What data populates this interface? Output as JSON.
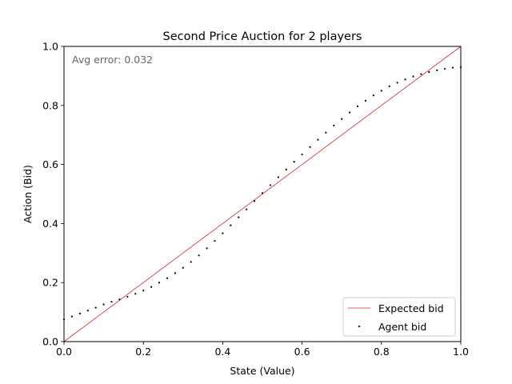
{
  "chart_data": {
    "type": "scatter",
    "title": "Second Price Auction for 2 players",
    "xlabel": "State (Value)",
    "ylabel": "Action (Bid)",
    "xlim": [
      0.0,
      1.0
    ],
    "ylim": [
      0.0,
      1.0
    ],
    "xticks": [
      "0.0",
      "0.2",
      "0.4",
      "0.6",
      "0.8",
      "1.0"
    ],
    "yticks": [
      "0.0",
      "0.2",
      "0.4",
      "0.6",
      "0.8",
      "1.0"
    ],
    "grid": false,
    "annotation": "Avg error: 0.032",
    "legend": {
      "position": "lower-right",
      "entries": [
        "Expected bid",
        "Agent bid"
      ]
    },
    "series": [
      {
        "name": "Expected bid",
        "kind": "line",
        "color": "#d62728",
        "x": [
          0.0,
          1.0
        ],
        "y": [
          0.0,
          1.0
        ]
      },
      {
        "name": "Agent bid",
        "kind": "scatter",
        "color": "#000000",
        "x": [
          0.0,
          0.02,
          0.04,
          0.06,
          0.08,
          0.1,
          0.12,
          0.14,
          0.16,
          0.18,
          0.2,
          0.22,
          0.24,
          0.26,
          0.28,
          0.3,
          0.32,
          0.34,
          0.36,
          0.38,
          0.4,
          0.42,
          0.44,
          0.46,
          0.48,
          0.5,
          0.52,
          0.54,
          0.56,
          0.58,
          0.6,
          0.62,
          0.64,
          0.66,
          0.68,
          0.7,
          0.72,
          0.74,
          0.76,
          0.78,
          0.8,
          0.82,
          0.84,
          0.86,
          0.88,
          0.9,
          0.92,
          0.94,
          0.96,
          0.98,
          1.0
        ],
        "y": [
          0.075,
          0.085,
          0.095,
          0.105,
          0.115,
          0.126,
          0.135,
          0.143,
          0.152,
          0.162,
          0.173,
          0.185,
          0.2,
          0.215,
          0.232,
          0.25,
          0.27,
          0.292,
          0.316,
          0.341,
          0.367,
          0.394,
          0.421,
          0.448,
          0.476,
          0.503,
          0.53,
          0.557,
          0.583,
          0.609,
          0.634,
          0.659,
          0.684,
          0.708,
          0.732,
          0.754,
          0.776,
          0.797,
          0.816,
          0.834,
          0.85,
          0.865,
          0.877,
          0.888,
          0.898,
          0.906,
          0.913,
          0.919,
          0.924,
          0.928,
          0.93
        ]
      }
    ]
  }
}
